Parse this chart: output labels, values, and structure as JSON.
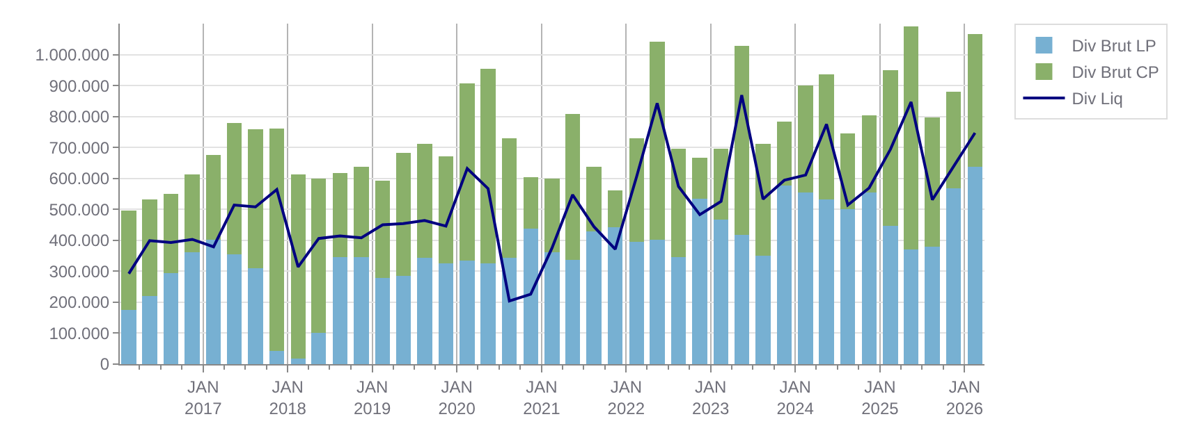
{
  "chart_data": {
    "type": "bar",
    "stacked": true,
    "x": [
      "2016-02-15",
      "2016-05-15",
      "2016-08-15",
      "2016-11-15",
      "2017-02-15",
      "2017-05-15",
      "2017-08-15",
      "2017-11-15",
      "2018-02-15",
      "2018-05-15",
      "2018-08-15",
      "2018-11-15",
      "2019-02-15",
      "2019-05-15",
      "2019-08-15",
      "2019-11-15",
      "2020-02-15",
      "2020-05-15",
      "2020-08-15",
      "2020-11-15",
      "2021-02-15",
      "2021-05-15",
      "2021-08-15",
      "2021-11-15",
      "2022-02-15",
      "2022-05-15",
      "2022-08-15",
      "2022-11-15",
      "2023-02-15",
      "2023-05-15",
      "2023-08-15",
      "2023-11-15",
      "2024-02-15",
      "2024-05-15",
      "2024-08-15",
      "2024-11-15",
      "2025-02-15",
      "2025-05-15",
      "2025-08-15",
      "2025-11-15",
      "2026-02-15"
    ],
    "series": [
      {
        "name": "Div Brut LP",
        "color": "#77b0d2",
        "values": [
          176000,
          221000,
          293000,
          362000,
          401000,
          354000,
          310000,
          43000,
          17000,
          100000,
          346000,
          346000,
          279000,
          285000,
          343000,
          326000,
          335000,
          326000,
          343000,
          437000,
          362000,
          337000,
          429000,
          443000,
          396000,
          401000,
          346000,
          535000,
          468000,
          417000,
          350000,
          576000,
          554000,
          533000,
          500000,
          554000,
          446000,
          371000,
          379000,
          567000,
          638000
        ]
      },
      {
        "name": "Div Brut CP",
        "color": "#8ab06a",
        "values": [
          320000,
          312000,
          258000,
          250000,
          275000,
          425000,
          448000,
          719000,
          595000,
          500000,
          271000,
          291000,
          314000,
          398000,
          369000,
          345000,
          573000,
          628000,
          386000,
          167000,
          238000,
          471000,
          208000,
          119000,
          333000,
          641000,
          350000,
          132000,
          228000,
          612000,
          362000,
          207000,
          346000,
          404000,
          246000,
          250000,
          504000,
          721000,
          417000,
          312000,
          429000
        ]
      },
      {
        "name": "Div Liq",
        "type": "line",
        "color": "#000080",
        "line_style": "solid",
        "values": [
          292000,
          399000,
          393000,
          403000,
          379000,
          514000,
          508000,
          564000,
          314000,
          406000,
          414000,
          408000,
          450000,
          454000,
          464000,
          446000,
          632000,
          567000,
          204000,
          226000,
          375000,
          547000,
          444000,
          371000,
          605000,
          843000,
          574000,
          483000,
          526000,
          869000,
          533000,
          594000,
          611000,
          775000,
          514000,
          569000,
          694000,
          847000,
          531000,
          639000,
          747000
        ]
      }
    ],
    "xlim": [
      "2016-01-07",
      "2026-03-28"
    ],
    "xticks": [
      {
        "value": "2017-01-01",
        "label": "JAN\n2017"
      },
      {
        "value": "2018-01-01",
        "label": "JAN\n2018"
      },
      {
        "value": "2019-01-01",
        "label": "JAN\n2019"
      },
      {
        "value": "2020-01-01",
        "label": "JAN\n2020"
      },
      {
        "value": "2021-01-01",
        "label": "JAN\n2021"
      },
      {
        "value": "2022-01-01",
        "label": "JAN\n2022"
      },
      {
        "value": "2023-01-01",
        "label": "JAN\n2023"
      },
      {
        "value": "2024-01-01",
        "label": "JAN\n2024"
      },
      {
        "value": "2025-01-01",
        "label": "JAN\n2025"
      },
      {
        "value": "2026-01-01",
        "label": "JAN\n2026"
      },
      {
        "value": "2016-04-01",
        "label": null
      },
      {
        "value": "2016-07-01",
        "label": null
      },
      {
        "value": "2016-10-01",
        "label": null
      },
      {
        "value": "2017-04-01",
        "label": null
      },
      {
        "value": "2017-07-01",
        "label": null
      },
      {
        "value": "2017-10-01",
        "label": null
      },
      {
        "value": "2018-04-01",
        "label": null
      },
      {
        "value": "2018-07-01",
        "label": null
      },
      {
        "value": "2018-10-01",
        "label": null
      },
      {
        "value": "2019-04-01",
        "label": null
      },
      {
        "value": "2019-07-01",
        "label": null
      },
      {
        "value": "2019-10-01",
        "label": null
      },
      {
        "value": "2020-04-01",
        "label": null
      },
      {
        "value": "2020-07-01",
        "label": null
      },
      {
        "value": "2020-10-01",
        "label": null
      },
      {
        "value": "2021-04-01",
        "label": null
      },
      {
        "value": "2021-07-01",
        "label": null
      },
      {
        "value": "2021-10-01",
        "label": null
      },
      {
        "value": "2022-04-01",
        "label": null
      },
      {
        "value": "2022-07-01",
        "label": null
      },
      {
        "value": "2022-10-01",
        "label": null
      },
      {
        "value": "2023-04-01",
        "label": null
      },
      {
        "value": "2023-07-01",
        "label": null
      },
      {
        "value": "2023-10-01",
        "label": null
      },
      {
        "value": "2024-04-01",
        "label": null
      },
      {
        "value": "2024-07-01",
        "label": null
      },
      {
        "value": "2024-10-01",
        "label": null
      },
      {
        "value": "2025-04-01",
        "label": null
      },
      {
        "value": "2025-07-01",
        "label": null
      },
      {
        "value": "2025-10-01",
        "label": null
      }
    ],
    "ylim": [
      0,
      1100000
    ],
    "yticks": [
      0,
      {
        "value": 100000,
        "label": "100.000"
      },
      {
        "value": 200000,
        "label": "200.000"
      },
      {
        "value": 300000,
        "label": "300.000"
      },
      {
        "value": 400000,
        "label": "400.000"
      },
      {
        "value": 500000,
        "label": "500.000"
      },
      {
        "value": 600000,
        "label": "600.000"
      },
      {
        "value": 700000,
        "label": "700.000"
      },
      {
        "value": 800000,
        "label": "800.000"
      },
      {
        "value": 900000,
        "label": "900.000"
      },
      {
        "value": 1000000,
        "label": "1.000.000"
      }
    ],
    "grid": true,
    "legend": "top right"
  }
}
